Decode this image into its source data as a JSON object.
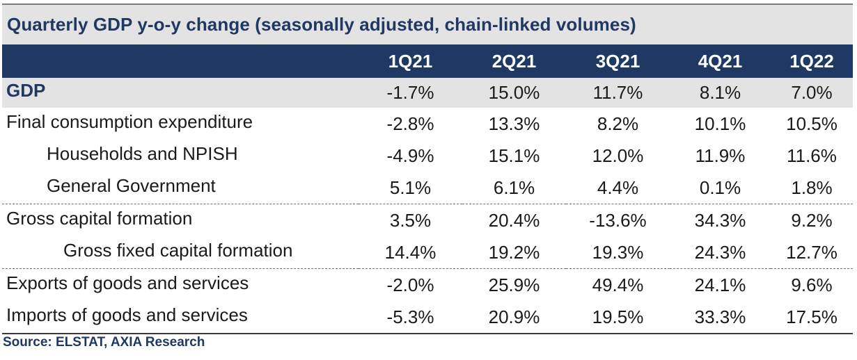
{
  "chart_data": {
    "type": "table",
    "title": "Quarterly GDP y-o-y change (seasonally adjusted, chain-linked volumes)",
    "columns": [
      "1Q21",
      "2Q21",
      "3Q21",
      "4Q21",
      "1Q22"
    ],
    "rows": [
      {
        "label": "GDP",
        "values": [
          "-1.7%",
          "15.0%",
          "11.7%",
          "8.1%",
          "7.0%"
        ]
      },
      {
        "label": "Final consumption expenditure",
        "values": [
          "-2.8%",
          "13.3%",
          "8.2%",
          "10.1%",
          "10.5%"
        ]
      },
      {
        "label": "Households and NPISH",
        "values": [
          "-4.9%",
          "15.1%",
          "12.0%",
          "11.9%",
          "11.6%"
        ]
      },
      {
        "label": "General Government",
        "values": [
          "5.1%",
          "6.1%",
          "4.4%",
          "0.1%",
          "1.8%"
        ]
      },
      {
        "label": "Gross capital formation",
        "values": [
          "3.5%",
          "20.4%",
          "-13.6%",
          "34.3%",
          "9.2%"
        ]
      },
      {
        "label": "Gross fixed capital formation",
        "values": [
          "14.4%",
          "19.2%",
          "19.3%",
          "24.3%",
          "12.7%"
        ]
      },
      {
        "label": "Exports of goods and services",
        "values": [
          "-2.0%",
          "25.9%",
          "49.4%",
          "24.1%",
          "9.6%"
        ]
      },
      {
        "label": "Imports of goods and services",
        "values": [
          "-5.3%",
          "20.9%",
          "19.5%",
          "33.3%",
          "17.5%"
        ]
      }
    ],
    "source": "Source: ELSTAT, AXIA Research"
  },
  "colors": {
    "header_bg": "#1f3864",
    "title_bg": "#e3e3e3",
    "accent_text": "#1f3864"
  }
}
